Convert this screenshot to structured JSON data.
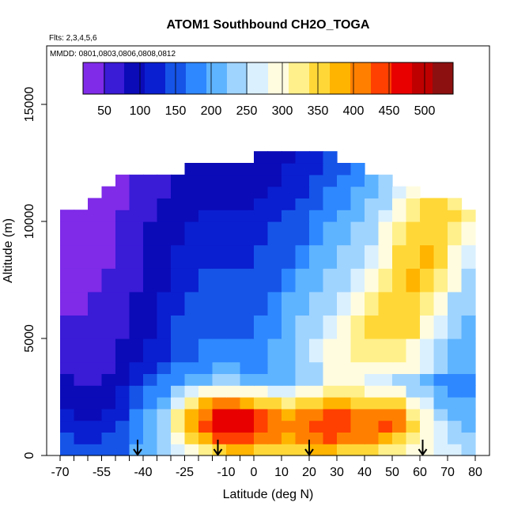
{
  "chart_data": {
    "type": "heatmap",
    "title": "ATOM1 Southbound CH2O_TOGA",
    "flights_text": "Flts: 2,3,4,5,6",
    "dates_text": "MMDD: 0801,0803,0806,0808,0812",
    "xlabel": "Latitude (deg N)",
    "ylabel": "Altitude (m)",
    "xlim": [
      -70,
      80
    ],
    "ylim": [
      0,
      17500
    ],
    "x_ticks": [
      -70,
      -55,
      -40,
      -25,
      -10,
      0,
      10,
      20,
      30,
      40,
      50,
      60,
      70,
      80
    ],
    "x_tick_labels": [
      "-70",
      "-55",
      "-40",
      "-25",
      "-10",
      "0",
      "10",
      "20",
      "30",
      "40",
      "50",
      "60",
      "70",
      "80"
    ],
    "x_minor_ticks": [
      -65,
      -60,
      -50,
      -45,
      -35,
      -30,
      -20,
      -15,
      -5
    ],
    "y_ticks": [
      0,
      5000,
      10000,
      15000
    ],
    "y_tick_labels": [
      "0",
      "5000",
      "10000",
      "15000"
    ],
    "colorbar": {
      "range": [
        20,
        540
      ],
      "ticks": [
        50,
        100,
        150,
        200,
        250,
        300,
        350,
        400,
        450,
        500
      ],
      "tick_labels": [
        "50",
        "100",
        "150",
        "200",
        "250",
        "300",
        "350",
        "400",
        "450",
        "500"
      ],
      "colors": [
        "#7f2be8",
        "#3a1bd6",
        "#0b0bb8",
        "#0a1fd0",
        "#1654e8",
        "#2e88ff",
        "#5fb4ff",
        "#9fd4ff",
        "#daf0ff",
        "#fffce0",
        "#fff08c",
        "#ffd838",
        "#ffb400",
        "#ff8000",
        "#ff4000",
        "#e80000",
        "#bf0000",
        "#8c1010"
      ]
    },
    "latitude_centers": [
      -67.5,
      -62.5,
      -57.5,
      -52.5,
      -47.5,
      -42.5,
      -37.5,
      -32.5,
      -27.5,
      -22.5,
      -17.5,
      -12.5,
      -7.5,
      -2.5,
      2.5,
      7.5,
      12.5,
      17.5,
      22.5,
      27.5,
      32.5,
      37.5,
      42.5,
      47.5,
      52.5,
      57.5,
      62.5,
      67.5,
      72.5,
      77.5
    ],
    "altitude_bins": [
      0,
      500,
      1000,
      1500,
      2000,
      2500,
      3000,
      3500,
      4000,
      5000,
      6000,
      7000,
      8000,
      9000,
      10000,
      10500,
      11000,
      11500,
      12000,
      12500
    ],
    "values": [
      [
        160,
        150,
        140,
        150,
        160,
        200,
        220,
        240,
        270,
        300,
        330,
        360,
        380,
        380,
        360,
        350,
        340,
        350,
        370,
        380,
        360,
        340,
        340,
        330,
        320,
        300,
        290,
        270,
        260,
        250
      ],
      [
        140,
        130,
        130,
        140,
        150,
        190,
        220,
        240,
        290,
        340,
        390,
        430,
        440,
        430,
        410,
        400,
        390,
        400,
        420,
        430,
        420,
        400,
        400,
        380,
        360,
        320,
        300,
        270,
        250,
        240
      ],
      [
        120,
        110,
        110,
        120,
        140,
        180,
        210,
        250,
        320,
        380,
        430,
        470,
        480,
        470,
        440,
        420,
        410,
        420,
        440,
        450,
        440,
        420,
        420,
        440,
        420,
        340,
        300,
        260,
        230,
        220
      ],
      [
        110,
        100,
        100,
        110,
        130,
        170,
        200,
        240,
        310,
        370,
        420,
        470,
        470,
        460,
        430,
        400,
        390,
        400,
        420,
        430,
        430,
        410,
        400,
        420,
        400,
        330,
        280,
        240,
        220,
        210
      ],
      [
        100,
        90,
        90,
        100,
        120,
        160,
        190,
        220,
        270,
        320,
        370,
        400,
        400,
        380,
        360,
        340,
        330,
        340,
        360,
        380,
        380,
        360,
        350,
        360,
        340,
        290,
        260,
        220,
        200,
        200
      ],
      [
        90,
        80,
        80,
        90,
        110,
        150,
        170,
        190,
        230,
        260,
        280,
        300,
        300,
        290,
        280,
        270,
        270,
        280,
        300,
        330,
        330,
        310,
        300,
        300,
        290,
        250,
        230,
        210,
        190,
        190
      ],
      [
        80,
        75,
        75,
        80,
        100,
        130,
        150,
        170,
        190,
        200,
        210,
        230,
        230,
        220,
        220,
        220,
        220,
        230,
        250,
        290,
        290,
        280,
        270,
        260,
        250,
        230,
        210,
        190,
        180,
        180
      ],
      [
        70,
        70,
        70,
        70,
        90,
        110,
        130,
        150,
        170,
        180,
        190,
        200,
        200,
        190,
        190,
        200,
        210,
        230,
        250,
        280,
        290,
        290,
        290,
        300,
        300,
        280,
        260,
        230,
        210,
        200
      ],
      [
        60,
        60,
        60,
        60,
        80,
        100,
        110,
        130,
        150,
        160,
        170,
        170,
        170,
        170,
        180,
        200,
        220,
        240,
        260,
        280,
        300,
        320,
        320,
        320,
        320,
        300,
        270,
        240,
        220,
        210
      ],
      [
        50,
        50,
        55,
        60,
        70,
        90,
        100,
        120,
        140,
        150,
        160,
        160,
        160,
        160,
        170,
        190,
        210,
        230,
        250,
        270,
        300,
        330,
        340,
        350,
        360,
        340,
        300,
        260,
        230,
        220
      ],
      [
        45,
        45,
        50,
        55,
        65,
        80,
        95,
        110,
        130,
        140,
        150,
        150,
        150,
        150,
        160,
        180,
        200,
        220,
        230,
        250,
        270,
        300,
        320,
        340,
        360,
        360,
        330,
        290,
        250,
        230
      ],
      [
        40,
        42,
        45,
        50,
        60,
        75,
        90,
        100,
        120,
        130,
        140,
        140,
        140,
        140,
        150,
        160,
        180,
        200,
        210,
        230,
        250,
        270,
        290,
        320,
        350,
        370,
        360,
        320,
        280,
        250
      ],
      [
        35,
        38,
        42,
        48,
        58,
        70,
        85,
        95,
        110,
        120,
        130,
        130,
        130,
        130,
        140,
        150,
        160,
        180,
        200,
        210,
        230,
        250,
        270,
        300,
        340,
        360,
        370,
        340,
        300,
        270
      ],
      [
        30,
        35,
        40,
        45,
        55,
        65,
        80,
        90,
        100,
        110,
        120,
        120,
        120,
        120,
        130,
        140,
        150,
        160,
        180,
        200,
        210,
        230,
        250,
        280,
        320,
        350,
        360,
        350,
        320,
        290
      ],
      [
        30,
        32,
        38,
        42,
        50,
        60,
        75,
        85,
        95,
        100,
        110,
        110,
        110,
        110,
        120,
        130,
        140,
        150,
        170,
        190,
        200,
        220,
        240,
        260,
        300,
        330,
        350,
        360,
        340,
        310
      ],
      [
        null,
        null,
        35,
        40,
        48,
        58,
        70,
        80,
        90,
        95,
        100,
        105,
        105,
        105,
        110,
        120,
        130,
        140,
        160,
        180,
        190,
        210,
        230,
        250,
        280,
        320,
        340,
        350,
        330,
        null
      ],
      [
        null,
        null,
        null,
        38,
        45,
        55,
        65,
        75,
        85,
        90,
        95,
        100,
        100,
        100,
        105,
        110,
        120,
        130,
        150,
        170,
        180,
        200,
        220,
        240,
        270,
        300,
        null,
        null,
        null,
        null
      ],
      [
        null,
        null,
        null,
        null,
        42,
        50,
        60,
        70,
        80,
        85,
        90,
        95,
        95,
        95,
        100,
        105,
        115,
        125,
        140,
        160,
        170,
        190,
        210,
        230,
        null,
        null,
        null,
        null,
        null,
        null
      ],
      [
        null,
        null,
        null,
        null,
        null,
        null,
        null,
        null,
        null,
        80,
        85,
        90,
        90,
        90,
        95,
        100,
        110,
        120,
        130,
        150,
        160,
        180,
        null,
        null,
        null,
        null,
        null,
        null,
        null,
        null
      ],
      [
        null,
        null,
        null,
        null,
        null,
        null,
        null,
        null,
        null,
        null,
        null,
        null,
        null,
        null,
        90,
        95,
        100,
        110,
        120,
        140,
        null,
        null,
        null,
        null,
        null,
        null,
        null,
        null,
        null,
        null
      ]
    ],
    "flight_markers_lat": [
      -42,
      -13,
      20,
      61
    ]
  }
}
